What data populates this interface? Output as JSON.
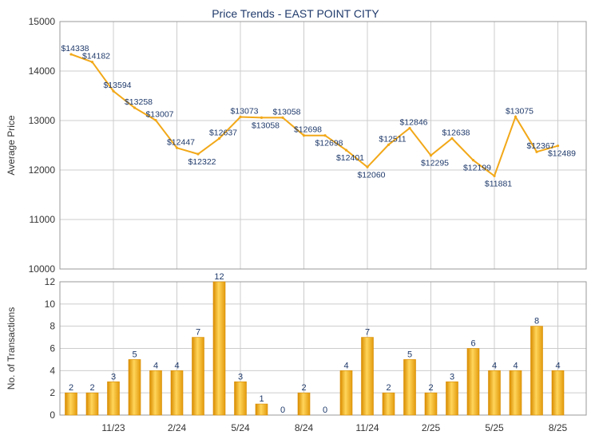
{
  "chart_data": {
    "type": "line+bar",
    "title": "Price Trends - EAST POINT CITY",
    "colors": {
      "accent": "#f2a818",
      "bar_fill": "#f5b228",
      "bar_stroke": "#d98c00",
      "label": "#1f3a6b",
      "grid": "#cccccc",
      "title": "#1f3a6b"
    },
    "x_ticks": [
      {
        "label": "11/23",
        "index": 2
      },
      {
        "label": "2/24",
        "index": 5
      },
      {
        "label": "5/24",
        "index": 8
      },
      {
        "label": "8/24",
        "index": 11
      },
      {
        "label": "11/24",
        "index": 14
      },
      {
        "label": "2/25",
        "index": 17
      },
      {
        "label": "5/25",
        "index": 20
      },
      {
        "label": "8/25",
        "index": 23
      }
    ],
    "price": {
      "ylabel": "Average Price",
      "ylim": [
        10000,
        15000
      ],
      "yticks": [
        10000,
        11000,
        12000,
        13000,
        14000,
        15000
      ],
      "values": [
        14338,
        14182,
        13594,
        13258,
        13007,
        12447,
        12322,
        12637,
        13073,
        13058,
        13058,
        12698,
        12698,
        12401,
        12060,
        12511,
        12846,
        12295,
        12638,
        12199,
        11881,
        13075,
        12367,
        12489
      ],
      "labels": [
        "$14338",
        "$14182",
        "$13594",
        "$13258",
        "$13007",
        "$12447",
        "$12322",
        "$12637",
        "$13073",
        "$13058",
        "$13058",
        "$12698",
        "$12698",
        "$12401",
        "$12060",
        "$12511",
        "$12846",
        "$12295",
        "$12638",
        "$12199",
        "$11881",
        "$13075",
        "$12367",
        "$12489"
      ]
    },
    "transactions": {
      "ylabel": "No. of Transactions",
      "ylim": [
        0,
        12
      ],
      "yticks": [
        0,
        2,
        4,
        6,
        8,
        10,
        12
      ],
      "values": [
        2,
        2,
        3,
        5,
        4,
        4,
        7,
        12,
        3,
        1,
        0,
        2,
        0,
        4,
        7,
        2,
        5,
        2,
        3,
        6,
        4,
        4,
        8,
        4
      ]
    }
  }
}
